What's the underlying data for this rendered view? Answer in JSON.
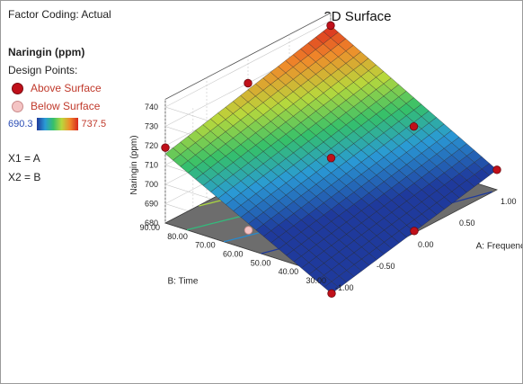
{
  "factor_coding": "Factor Coding: Actual",
  "legend": {
    "response_title": "Naringin (ppm)",
    "design_points_title": "Design Points:",
    "above_label": "Above Surface",
    "below_label": "Below Surface",
    "gradient_min": "690.3",
    "gradient_max": "737.5"
  },
  "factors": {
    "x1": "X1 = A",
    "x2": "X2 = B"
  },
  "chart_data": {
    "type": "surface3d",
    "title": "3D Surface",
    "zlabel": "Naringin (ppm)",
    "xlabel": "A: Frequency",
    "ylabel": "B: Time",
    "z_ticks": [
      "680",
      "690",
      "700",
      "710",
      "720",
      "730",
      "740"
    ],
    "x_ticks": [
      "-1.00",
      "-0.50",
      "0.00",
      "0.50",
      "1.00"
    ],
    "y_ticks": [
      "30.00",
      "40.00",
      "50.00",
      "60.00",
      "70.00",
      "80.00",
      "90.00"
    ],
    "xlim": [
      -1,
      1
    ],
    "ylim": [
      30,
      90
    ],
    "zlim": [
      680,
      740
    ],
    "color_range": [
      690.3,
      737.5
    ],
    "surface_corners": {
      "a_min_b_min": 671,
      "a_max_b_min": 690.3,
      "a_min_b_max": 715.8,
      "a_max_b_max": 737.5
    },
    "design_points": [
      {
        "a": 1,
        "b": 90,
        "z": 737.5,
        "position": "above"
      },
      {
        "a": -1,
        "b": 90,
        "z": 719,
        "position": "above"
      },
      {
        "a": 0,
        "b": 60,
        "z": 705,
        "position": "above"
      },
      {
        "a": 1,
        "b": 30,
        "z": 690.3,
        "position": "above"
      },
      {
        "a": -1,
        "b": 30,
        "z": 671,
        "position": "above"
      },
      {
        "a": 0,
        "b": 90,
        "z": 730,
        "position": "above"
      },
      {
        "a": 1,
        "b": 60,
        "z": 699,
        "position": "above"
      },
      {
        "a": -1,
        "b": 60,
        "z": 690,
        "position": "below"
      },
      {
        "a": 0,
        "b": 30,
        "z": 681,
        "position": "above"
      }
    ]
  }
}
